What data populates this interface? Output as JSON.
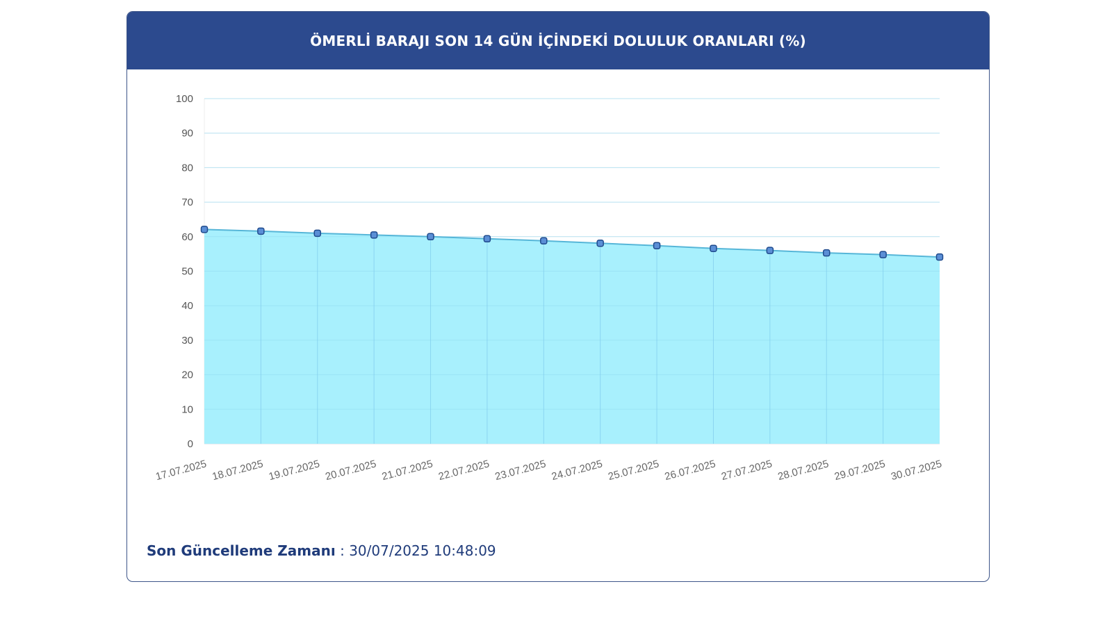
{
  "header": {
    "title": "ÖMERLİ BARAJI SON 14 GÜN İÇİNDEKİ DOLULUK ORANLARI (%)"
  },
  "footer": {
    "label": "Son Güncelleme Zamanı",
    "separator": " : ",
    "value": "30/07/2025 10:48:09"
  },
  "colors": {
    "header_bg": "#2c4a8e",
    "area_fill": "#a8f0fd",
    "line": "#56b6d8",
    "marker_fill": "#5b8fd6",
    "marker_stroke": "#1f4a8c",
    "footer_text": "#1f3b7a"
  },
  "chart_data": {
    "type": "area",
    "title": "ÖMERLİ BARAJI SON 14 GÜN İÇİNDEKİ DOLULUK ORANLARI (%)",
    "xlabel": "",
    "ylabel": "",
    "ylim": [
      0,
      100
    ],
    "yticks": [
      0,
      10,
      20,
      30,
      40,
      50,
      60,
      70,
      80,
      90,
      100
    ],
    "grid": true,
    "legend": "none",
    "categories": [
      "17.07.2025",
      "18.07.2025",
      "19.07.2025",
      "20.07.2025",
      "21.07.2025",
      "22.07.2025",
      "23.07.2025",
      "24.07.2025",
      "25.07.2025",
      "26.07.2025",
      "27.07.2025",
      "28.07.2025",
      "29.07.2025",
      "30.07.2025"
    ],
    "series": [
      {
        "values": [
          62.1,
          61.6,
          61.0,
          60.5,
          60.0,
          59.4,
          58.8,
          58.1,
          57.4,
          56.6,
          56.0,
          55.3,
          54.8,
          54.1
        ]
      }
    ]
  }
}
